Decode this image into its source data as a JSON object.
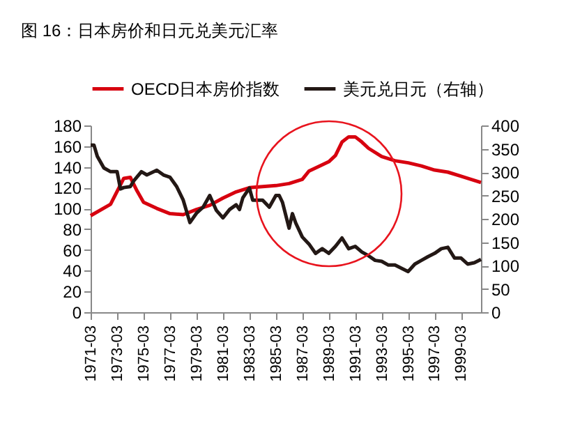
{
  "chart_data": {
    "type": "line",
    "title": "图 16：日本房价和日元兑美元汇率",
    "xlim": [
      "1971-03",
      "2000-09"
    ],
    "xticks": [
      {
        "value": "1971-03",
        "label": "1971-03"
      },
      {
        "value": "1973-03",
        "label": "1973-03"
      },
      {
        "value": "1975-03",
        "label": "1975-03"
      },
      {
        "value": "1977-03",
        "label": "1977-03"
      },
      {
        "value": "1979-03",
        "label": "1979-03"
      },
      {
        "value": "1981-03",
        "label": "1981-03"
      },
      {
        "value": "1983-03",
        "label": "1983-03"
      },
      {
        "value": "1985-03",
        "label": "1985-03"
      },
      {
        "value": "1987-03",
        "label": "1987-03"
      },
      {
        "value": "1989-03",
        "label": "1989-03"
      },
      {
        "value": "1991-03",
        "label": "1991-03"
      },
      {
        "value": "1993-03",
        "label": "1993-03"
      },
      {
        "value": "1995-03",
        "label": "1995-03"
      },
      {
        "value": "1997-03",
        "label": "1997-03"
      },
      {
        "value": "1999-03",
        "label": "1999-03"
      }
    ],
    "ylim": [
      0,
      180
    ],
    "yticks": [
      0,
      20,
      40,
      60,
      80,
      100,
      120,
      140,
      160,
      180
    ],
    "y2lim": [
      0,
      400
    ],
    "y2ticks": [
      0,
      50,
      100,
      150,
      200,
      250,
      300,
      350,
      400
    ],
    "grid": false,
    "legend": "top",
    "series": [
      {
        "name": "OECD日本房价指数",
        "color": "#d7000f",
        "x": [
          "1971-03",
          "1972-09",
          "1973-09",
          "1974-03",
          "1974-09",
          "1975-03",
          "1976-03",
          "1977-03",
          "1978-03",
          "1979-03",
          "1980-03",
          "1981-03",
          "1982-03",
          "1983-03",
          "1985-03",
          "1986-03",
          "1987-03",
          "1987-09",
          "1988-09",
          "1989-03",
          "1989-09",
          "1990-03",
          "1990-09",
          "1991-03",
          "1991-09",
          "1992-03",
          "1993-03",
          "1994-03",
          "1995-03",
          "1996-03",
          "1997-03",
          "1998-03",
          "1999-03",
          "2000-03",
          "2000-09"
        ],
        "values": [
          93,
          104,
          129,
          130,
          117,
          106,
          100,
          95,
          94,
          99,
          103,
          110,
          116,
          120,
          122,
          124,
          128,
          136,
          142,
          145,
          151,
          164,
          169,
          169,
          164,
          158,
          150,
          146,
          144,
          141,
          137,
          135,
          131,
          127,
          125
        ]
      },
      {
        "name": "美元兑日元（右轴）",
        "color": "#231815",
        "axis": "y2",
        "x": [
          "1971-03",
          "1971-06",
          "1971-09",
          "1972-03",
          "1972-09",
          "1973-03",
          "1973-06",
          "1973-09",
          "1974-03",
          "1974-06",
          "1975-01",
          "1975-06",
          "1976-03",
          "1976-09",
          "1977-03",
          "1977-09",
          "1978-03",
          "1978-09",
          "1979-03",
          "1979-09",
          "1980-03",
          "1980-09",
          "1981-03",
          "1981-09",
          "1982-03",
          "1982-06",
          "1982-09",
          "1983-03",
          "1983-06",
          "1984-03",
          "1984-09",
          "1985-03",
          "1985-06",
          "1985-09",
          "1986-03",
          "1986-06",
          "1986-09",
          "1987-03",
          "1987-09",
          "1988-03",
          "1988-09",
          "1989-03",
          "1989-09",
          "1990-03",
          "1990-09",
          "1991-03",
          "1991-09",
          "1992-03",
          "1992-09",
          "1993-03",
          "1993-09",
          "1994-03",
          "1995-03",
          "1995-09",
          "1996-03",
          "1996-09",
          "1997-03",
          "1997-09",
          "1998-03",
          "1998-09",
          "1999-03",
          "1999-09",
          "2000-03",
          "2000-09"
        ],
        "values": [
          358,
          358,
          334,
          309,
          301,
          301,
          264,
          267,
          269,
          281,
          301,
          294,
          304,
          294,
          289,
          269,
          240,
          192,
          212,
          225,
          250,
          218,
          202,
          220,
          230,
          220,
          245,
          266,
          240,
          240,
          225,
          250,
          250,
          235,
          180,
          211,
          191,
          161,
          146,
          126,
          136,
          126,
          141,
          159,
          136,
          141,
          129,
          121,
          111,
          109,
          101,
          101,
          87,
          103,
          111,
          119,
          126,
          136,
          139,
          116,
          116,
          103,
          106,
          113
        ]
      }
    ]
  }
}
